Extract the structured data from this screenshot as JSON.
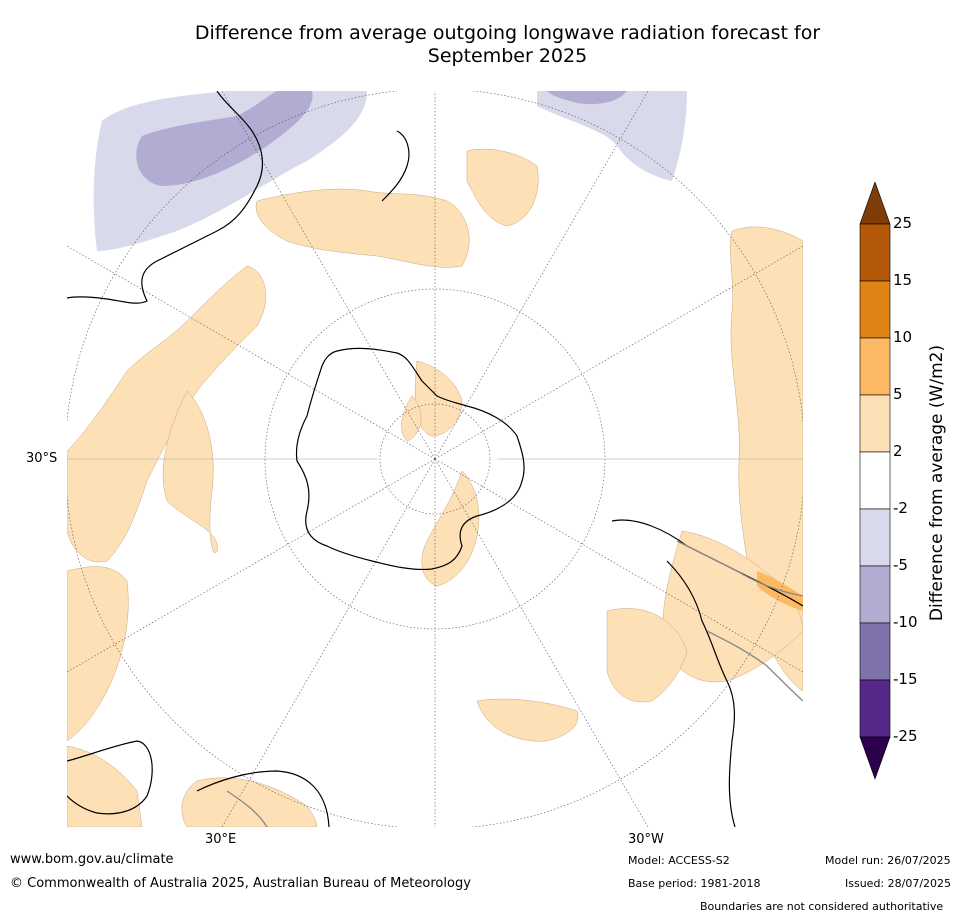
{
  "title_line1": "Difference from average outgoing longwave radiation forecast for",
  "title_line2": "September 2025",
  "map": {
    "latitude_label": "30°S",
    "longitude_labels": [
      "30°E",
      "30°W"
    ]
  },
  "legend": {
    "label": "Difference from average (W/m2)",
    "ticks": [
      "25",
      "15",
      "10",
      "5",
      "2",
      "-2",
      "-5",
      "-10",
      "-15",
      "-25"
    ],
    "bins": [
      {
        "range": "> 25",
        "color": "#7f3b08"
      },
      {
        "range": "15 to 25",
        "color": "#b35806"
      },
      {
        "range": "10 to 15",
        "color": "#e08214"
      },
      {
        "range": "5 to 10",
        "color": "#fdb863"
      },
      {
        "range": "2 to 5",
        "color": "#fee0b6"
      },
      {
        "range": "-2 to 2",
        "color": "#ffffff"
      },
      {
        "range": "-5 to -2",
        "color": "#d8daeb"
      },
      {
        "range": "-10 to -5",
        "color": "#b2abd2"
      },
      {
        "range": "-15 to -10",
        "color": "#8073ac"
      },
      {
        "range": "-25 to -15",
        "color": "#542788"
      },
      {
        "range": "< -25",
        "color": "#2d004b"
      }
    ]
  },
  "footer": {
    "website": "www.bom.gov.au/climate",
    "copyright": "© Commonwealth of Australia 2025, Australian Bureau of Meteorology",
    "model": "Model: ACCESS-S2",
    "base_period": "Base period: 1981-2018",
    "model_run": "Model run: 26/07/2025",
    "issued": "Issued: 28/07/2025",
    "disclaimer": "Boundaries are not considered authoritative"
  }
}
